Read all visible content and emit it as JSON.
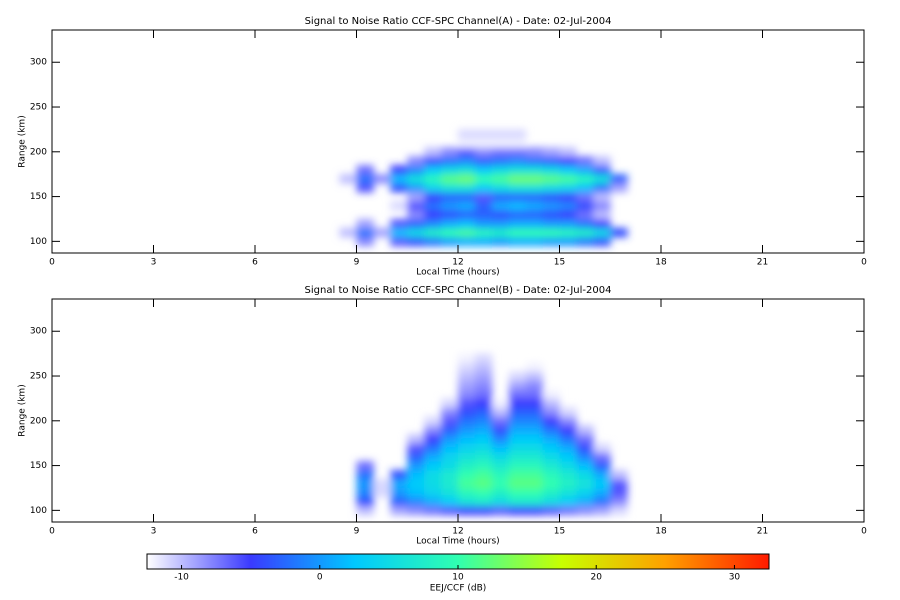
{
  "chart_data": [
    {
      "type": "heatmap",
      "title": "Signal to Noise Ratio CCF-SPC Channel(A) - Date: 02-Jul-2004",
      "x_label": "Local Time (hours)",
      "y_label": "Range (km)",
      "xlim": [
        0,
        24
      ],
      "xticks": [
        0,
        3,
        6,
        9,
        12,
        15,
        18,
        21,
        {
          "value": 24,
          "label": "0"
        }
      ],
      "ylim": [
        87,
        336
      ],
      "yticks": [
        100,
        150,
        200,
        250,
        300
      ],
      "x_edges": [
        8.5,
        9,
        9.5,
        10,
        10.5,
        11,
        11.5,
        12,
        12.5,
        13,
        13.5,
        14,
        14.5,
        15,
        15.5,
        16,
        16.5,
        17
      ],
      "y_edges": [
        95,
        105,
        115,
        125,
        135,
        145,
        155,
        165,
        175,
        185,
        195,
        205,
        215,
        225
      ],
      "z": [
        [
          null,
          -8,
          null,
          -6,
          -4,
          -2,
          0,
          1,
          1,
          0,
          1,
          1,
          0,
          0,
          -2,
          -4,
          null
        ],
        [
          -10,
          -2,
          -9,
          2,
          5,
          8,
          10,
          11,
          9,
          8,
          10,
          10,
          10,
          9,
          8,
          5,
          -4
        ],
        [
          null,
          -9,
          null,
          -6,
          -3,
          -1,
          1,
          2,
          0,
          0,
          1,
          1,
          0,
          0,
          -2,
          -5,
          null
        ],
        [
          null,
          null,
          null,
          null,
          -8,
          -5,
          -4,
          -3,
          -3,
          -4,
          -3,
          -3,
          -4,
          -5,
          -7,
          -10,
          null
        ],
        [
          null,
          null,
          null,
          -11,
          -6,
          -2,
          0,
          1,
          -3,
          1,
          2,
          1,
          0,
          -1,
          -4,
          -8,
          null
        ],
        [
          null,
          null,
          null,
          null,
          -9,
          -5,
          -3,
          -3,
          -6,
          -3,
          -3,
          -3,
          -4,
          -5,
          -7,
          -10,
          null
        ],
        [
          null,
          -6,
          null,
          -4,
          0,
          4,
          6,
          6,
          3,
          5,
          6,
          6,
          5,
          4,
          2,
          -2,
          -9
        ],
        [
          -10,
          -2,
          -8,
          2,
          6,
          9,
          12,
          13,
          10,
          11,
          13,
          13,
          12,
          11,
          9,
          6,
          -3
        ],
        [
          null,
          -7,
          null,
          -5,
          -1,
          3,
          5,
          6,
          3,
          5,
          6,
          6,
          5,
          3,
          1,
          -3,
          null
        ],
        [
          null,
          null,
          null,
          null,
          -8,
          -4,
          -2,
          -1,
          -3,
          -2,
          -1,
          -2,
          -3,
          -5,
          -7,
          -10,
          null
        ],
        [
          null,
          null,
          null,
          null,
          null,
          -10,
          -8,
          -6,
          -8,
          -7,
          -7,
          -8,
          -9,
          -10,
          null,
          null,
          null
        ],
        [
          null,
          null,
          null,
          null,
          null,
          null,
          null,
          -12,
          -12,
          -12,
          -12,
          null,
          null,
          null,
          null,
          null,
          null
        ],
        [
          null,
          null,
          null,
          null,
          null,
          null,
          null,
          -11,
          -11,
          -11,
          -11,
          null,
          null,
          null,
          null,
          null,
          null
        ]
      ]
    },
    {
      "type": "heatmap",
      "title": "Signal to Noise Ratio CCF-SPC Channel(B) - Date: 02-Jul-2004",
      "x_label": "Local Time (hours)",
      "y_label": "Range (km)",
      "xlim": [
        0,
        24
      ],
      "xticks": [
        0,
        3,
        6,
        9,
        12,
        15,
        18,
        21,
        {
          "value": 24,
          "label": "0"
        }
      ],
      "ylim": [
        87,
        336
      ],
      "yticks": [
        100,
        150,
        200,
        250,
        300
      ],
      "x_edges": [
        8.5,
        9,
        9.5,
        10,
        10.5,
        11,
        11.5,
        12,
        12.5,
        13,
        13.5,
        14,
        14.5,
        15,
        15.5,
        16,
        16.5,
        17
      ],
      "y_edges": [
        95,
        105,
        115,
        125,
        135,
        145,
        155,
        165,
        175,
        185,
        195,
        205,
        215,
        225,
        235,
        245,
        255,
        265,
        275
      ],
      "z": [
        [
          null,
          -10,
          null,
          -9,
          -8,
          -7,
          -6,
          -5,
          -5,
          -6,
          -5,
          -5,
          -6,
          -7,
          -8,
          -9,
          -11
        ],
        [
          null,
          -4,
          null,
          -3,
          -1,
          1,
          3,
          6,
          7,
          5,
          7,
          7,
          5,
          3,
          1,
          -2,
          -8
        ],
        [
          null,
          -1,
          -11,
          0,
          2,
          4,
          6,
          9,
          10,
          8,
          10,
          10,
          8,
          6,
          4,
          1,
          -6
        ],
        [
          null,
          0,
          -11,
          1,
          3,
          5,
          7,
          11,
          12,
          10,
          12,
          12,
          10,
          8,
          6,
          3,
          -6
        ],
        [
          null,
          -2,
          null,
          -4,
          2,
          5,
          7,
          10,
          11,
          9,
          11,
          11,
          9,
          7,
          5,
          1,
          -10
        ],
        [
          null,
          -7,
          null,
          null,
          0,
          3,
          5,
          8,
          9,
          7,
          9,
          9,
          7,
          5,
          2,
          -3,
          null
        ],
        [
          null,
          null,
          null,
          null,
          -3,
          1,
          4,
          6,
          7,
          5,
          7,
          7,
          5,
          3,
          -1,
          -7,
          null
        ],
        [
          null,
          null,
          null,
          null,
          -6,
          -2,
          2,
          4,
          5,
          2,
          5,
          5,
          3,
          1,
          -4,
          -11,
          null
        ],
        [
          null,
          null,
          null,
          null,
          -10,
          -5,
          0,
          2,
          3,
          -1,
          3,
          3,
          1,
          -2,
          -7,
          null,
          null
        ],
        [
          null,
          null,
          null,
          null,
          null,
          -8,
          -3,
          0,
          1,
          -4,
          1,
          1,
          -2,
          -5,
          -10,
          null,
          null
        ],
        [
          null,
          null,
          null,
          null,
          null,
          -11,
          -6,
          -2,
          -1,
          -7,
          -1,
          -1,
          -5,
          -8,
          null,
          null,
          null
        ],
        [
          null,
          null,
          null,
          null,
          null,
          null,
          -8,
          -4,
          -3,
          -10,
          -3,
          -3,
          -8,
          -11,
          null,
          null,
          null
        ],
        [
          null,
          null,
          null,
          null,
          null,
          null,
          -11,
          -6,
          -5,
          -12,
          -5,
          -5,
          -10,
          null,
          null,
          null,
          null
        ],
        [
          null,
          null,
          null,
          null,
          null,
          null,
          null,
          -8,
          -7,
          null,
          -7,
          -7,
          -12,
          null,
          null,
          null,
          null
        ],
        [
          null,
          null,
          null,
          null,
          null,
          null,
          null,
          -9,
          -8,
          null,
          -9,
          -8,
          null,
          null,
          null,
          null,
          null
        ],
        [
          null,
          null,
          null,
          null,
          null,
          null,
          null,
          -10,
          -9,
          null,
          -11,
          -10,
          null,
          null,
          null,
          null,
          null
        ],
        [
          null,
          null,
          null,
          null,
          null,
          null,
          null,
          -11,
          -10,
          null,
          null,
          -12,
          null,
          null,
          null,
          null,
          null
        ],
        [
          null,
          null,
          null,
          null,
          null,
          null,
          null,
          -12,
          -11,
          null,
          null,
          null,
          null,
          null,
          null,
          null,
          null
        ]
      ]
    }
  ],
  "colorbar": {
    "label": "EEJ/CCF (dB)",
    "zlim": [
      -12.5,
      32.5
    ],
    "ticks": [
      -10,
      0,
      10,
      20,
      30
    ],
    "colors": [
      "#ffffff",
      "#3a3aff",
      "#00c8ff",
      "#30ffb0",
      "#c8ff00",
      "#ffa000",
      "#ff1a00"
    ]
  }
}
